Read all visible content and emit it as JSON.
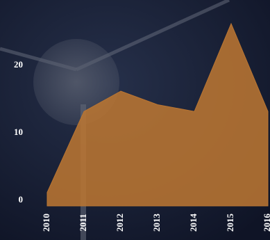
{
  "chart_data": {
    "type": "area",
    "categories": [
      "2010",
      "2011",
      "2012",
      "2013",
      "2014",
      "2015",
      "2016"
    ],
    "values": [
      2,
      14,
      17,
      15,
      14,
      27,
      14
    ],
    "color": "#b97532",
    "ylim": [
      0,
      30
    ],
    "yticks": [
      0,
      10,
      20
    ],
    "grid": false
  }
}
